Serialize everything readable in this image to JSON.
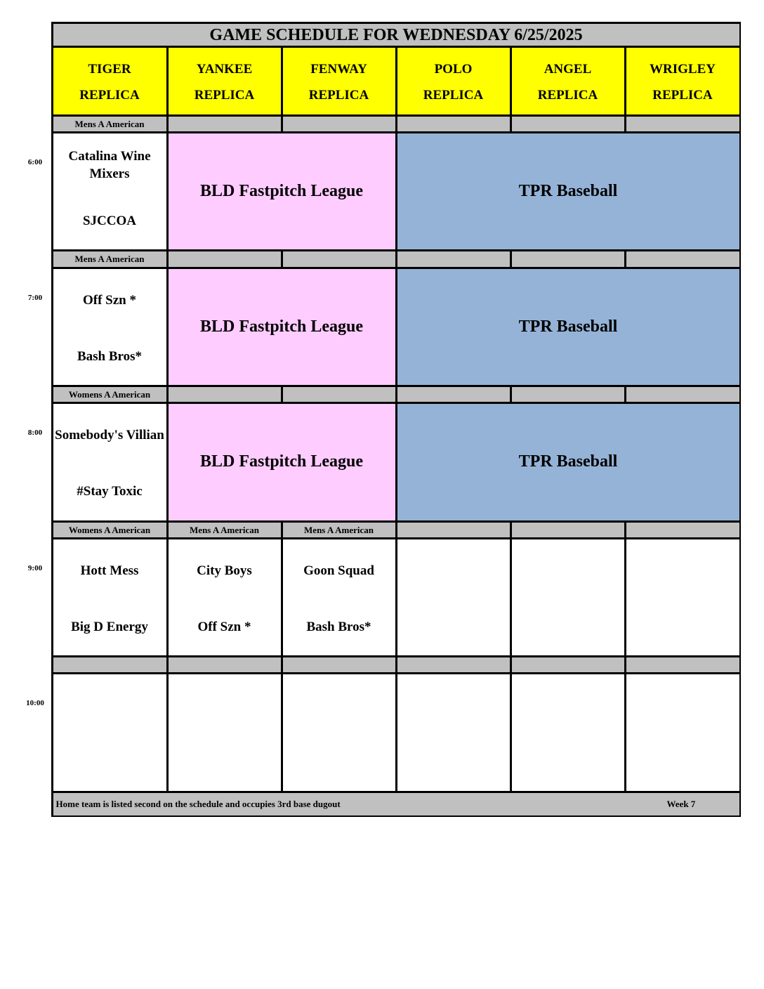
{
  "title": "GAME SCHEDULE FOR WEDNESDAY 6/25/2025",
  "fields": [
    {
      "name": "TIGER",
      "sub": "REPLICA"
    },
    {
      "name": "YANKEE",
      "sub": "REPLICA"
    },
    {
      "name": "FENWAY",
      "sub": "REPLICA"
    },
    {
      "name": "POLO",
      "sub": "REPLICA"
    },
    {
      "name": "ANGEL",
      "sub": "REPLICA"
    },
    {
      "name": "WRIGLEY",
      "sub": "REPLICA"
    }
  ],
  "colors": {
    "header": "#ffff00",
    "divider": "#c0c0c0",
    "bld": "#ffccff",
    "tpr": "#95b3d7",
    "grid": "#000000"
  },
  "slots": [
    {
      "time": "6:00",
      "divisions": [
        "Mens A American",
        "",
        "",
        "",
        "",
        ""
      ],
      "games": [
        {
          "start": 0,
          "span": 1,
          "away": "Catalina Wine Mixers",
          "home": "SJCCOA"
        },
        {
          "start": 1,
          "span": 2,
          "league": "BLD Fastpitch League",
          "color": "bld"
        },
        {
          "start": 3,
          "span": 3,
          "league": "TPR Baseball",
          "color": "tpr"
        }
      ]
    },
    {
      "time": "7:00",
      "divisions": [
        "Mens A American",
        "",
        "",
        "",
        "",
        ""
      ],
      "games": [
        {
          "start": 0,
          "span": 1,
          "away": "Off Szn *",
          "home": "Bash Bros*"
        },
        {
          "start": 1,
          "span": 2,
          "league": "BLD Fastpitch League",
          "color": "bld"
        },
        {
          "start": 3,
          "span": 3,
          "league": "TPR Baseball",
          "color": "tpr"
        }
      ]
    },
    {
      "time": "8:00",
      "divisions": [
        "Womens A American",
        "",
        "",
        "",
        "",
        ""
      ],
      "games": [
        {
          "start": 0,
          "span": 1,
          "away": "Somebody's Villian",
          "home": "#Stay Toxic"
        },
        {
          "start": 1,
          "span": 2,
          "league": "BLD Fastpitch League",
          "color": "bld"
        },
        {
          "start": 3,
          "span": 3,
          "league": "TPR Baseball",
          "color": "tpr"
        }
      ]
    },
    {
      "time": "9:00",
      "divisions": [
        "Womens A American",
        "Mens A American",
        "Mens A American",
        "",
        "",
        ""
      ],
      "games": [
        {
          "start": 0,
          "span": 1,
          "away": "Hott Mess",
          "home": "Big D Energy"
        },
        {
          "start": 1,
          "span": 1,
          "away": "City Boys",
          "home": "Off Szn *"
        },
        {
          "start": 2,
          "span": 1,
          "away": "Goon Squad",
          "home": "Bash Bros*"
        },
        {
          "start": 3,
          "span": 1
        },
        {
          "start": 4,
          "span": 1
        },
        {
          "start": 5,
          "span": 1
        }
      ]
    },
    {
      "time": "10:00",
      "divisions": [
        "",
        "",
        "",
        "",
        "",
        ""
      ],
      "games": [
        {
          "start": 0,
          "span": 1
        },
        {
          "start": 1,
          "span": 1
        },
        {
          "start": 2,
          "span": 1
        },
        {
          "start": 3,
          "span": 1
        },
        {
          "start": 4,
          "span": 1
        },
        {
          "start": 5,
          "span": 1
        }
      ]
    }
  ],
  "footer": {
    "note": "Home team is listed second on the schedule and occupies 3rd base dugout",
    "week": "Week 7"
  }
}
